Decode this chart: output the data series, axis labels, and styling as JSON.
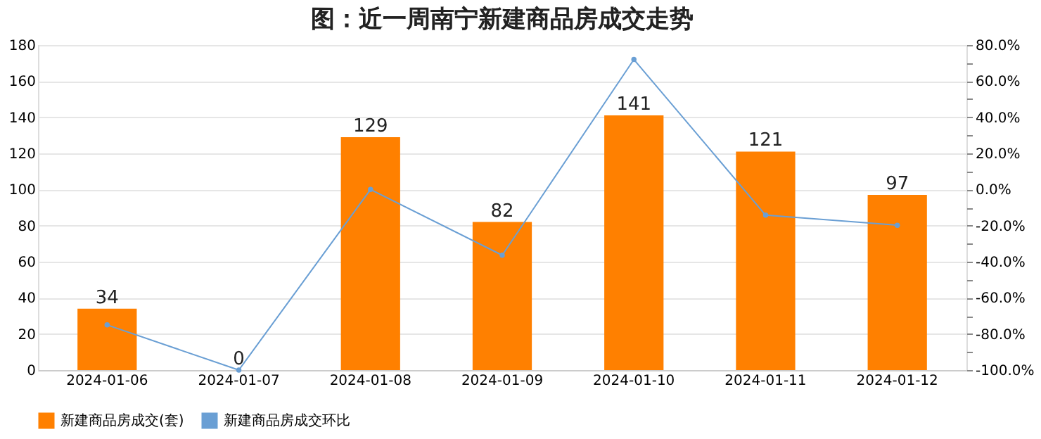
{
  "chart_data": {
    "type": "bar",
    "title": "图：近一周南宁新建商品房成交走势",
    "categories": [
      "2024-01-06",
      "2024-01-07",
      "2024-01-08",
      "2024-01-09",
      "2024-01-10",
      "2024-01-11",
      "2024-01-12"
    ],
    "series": [
      {
        "name": "新建商品房成交(套)",
        "color": "#ff8000",
        "values": [
          34,
          0,
          129,
          82,
          141,
          121,
          97
        ],
        "value_labels": [
          "34",
          "0",
          "129",
          "82",
          "141",
          "121",
          "97"
        ]
      },
      {
        "name": "新建商品房成交环比",
        "type": "line",
        "axis": "y2",
        "color": "#6a9fd4",
        "marker": "circle",
        "values": [
          -75,
          -100,
          0,
          -36.4,
          72.0,
          -14.2,
          -19.8
        ]
      }
    ],
    "ylim": [
      0,
      180
    ],
    "yticks": [
      0,
      20,
      40,
      60,
      80,
      100,
      120,
      140,
      160,
      180
    ],
    "y2lim": [
      -100,
      80
    ],
    "y2ticks": [
      {
        "value": -100,
        "label": "-100.0%"
      },
      {
        "value": -90,
        "label": null
      },
      {
        "value": -80,
        "label": "-80.0%"
      },
      {
        "value": -70,
        "label": null
      },
      {
        "value": -60,
        "label": "-60.0%"
      },
      {
        "value": -50,
        "label": null
      },
      {
        "value": -40,
        "label": "-40.0%"
      },
      {
        "value": -30,
        "label": null
      },
      {
        "value": -20,
        "label": "-20.0%"
      },
      {
        "value": -10,
        "label": null
      },
      {
        "value": 0,
        "label": "0.0%"
      },
      {
        "value": 10,
        "label": null
      },
      {
        "value": 20,
        "label": "20.0%"
      },
      {
        "value": 30,
        "label": null
      },
      {
        "value": 40,
        "label": "40.0%"
      },
      {
        "value": 50,
        "label": null
      },
      {
        "value": 60,
        "label": "60.0%"
      },
      {
        "value": 70,
        "label": null
      },
      {
        "value": 80,
        "label": "80.0%"
      }
    ],
    "grid": "y",
    "legend": "bottom"
  }
}
